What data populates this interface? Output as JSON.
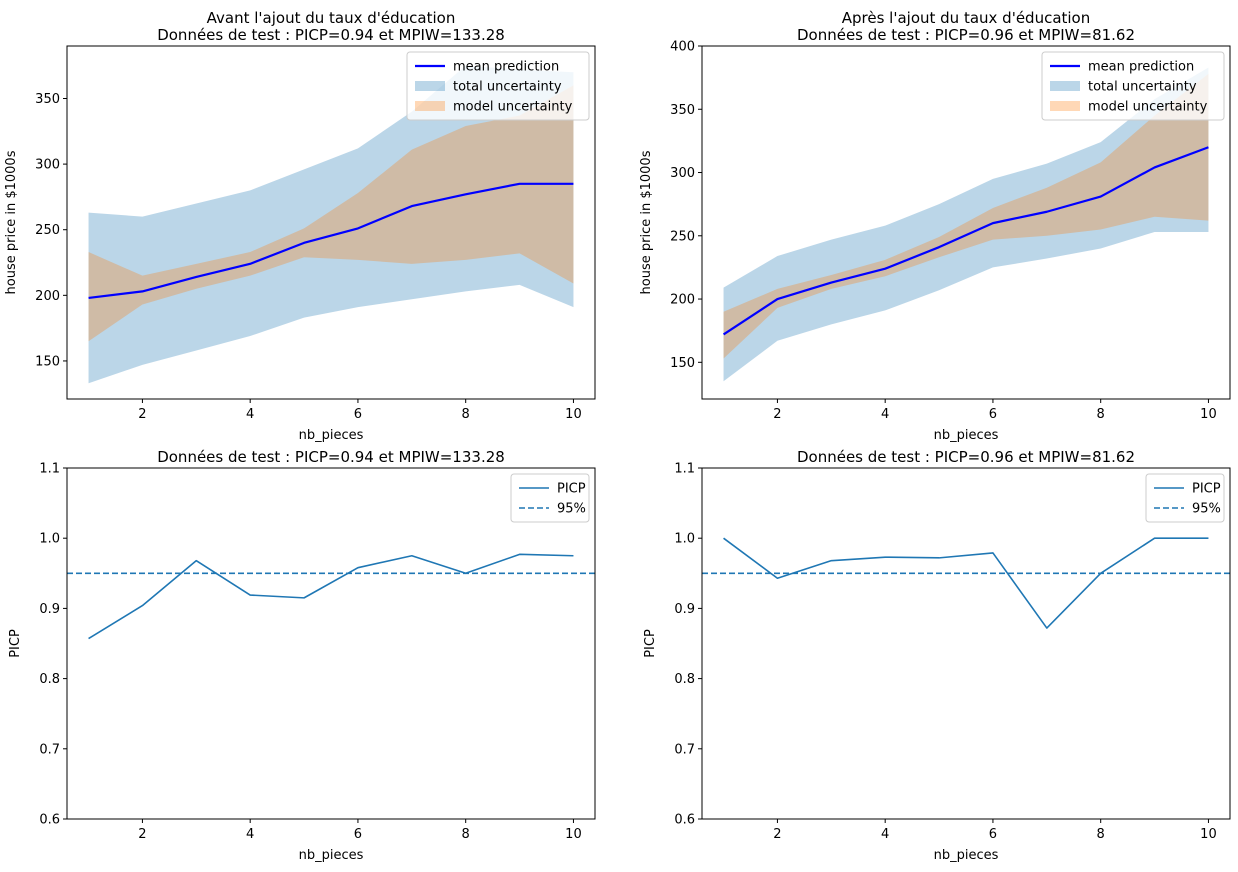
{
  "chart_data": [
    {
      "type": "line",
      "title": [
        "Avant l'ajout du taux d'éducation",
        "Données de test : PICP=0.94 et MPIW=133.28"
      ],
      "xlabel": "nb_pieces",
      "ylabel": "house price in $1000s",
      "xlim": [
        0.6,
        10.4
      ],
      "ylim": [
        121,
        390
      ],
      "xticks": [
        2,
        4,
        6,
        8,
        10
      ],
      "yticks": [
        150,
        200,
        250,
        300,
        350
      ],
      "legend_position": "upper right",
      "x": [
        1,
        2,
        3,
        4,
        5,
        6,
        7,
        8,
        9,
        10
      ],
      "series": [
        {
          "name": "mean prediction",
          "kind": "line",
          "color": "#0000ff",
          "values": [
            198,
            203,
            214,
            224,
            240,
            251,
            268,
            277,
            285,
            285
          ]
        },
        {
          "name": "total uncertainty",
          "kind": "band",
          "color": "#1f77b4",
          "opacity": 0.3,
          "lower": [
            133,
            147,
            158,
            169,
            183,
            191,
            197,
            203,
            208,
            191
          ],
          "upper": [
            263,
            260,
            270,
            280,
            296,
            312,
            340,
            375,
            372,
            370
          ]
        },
        {
          "name": "model uncertainty",
          "kind": "band",
          "color": "#ff7f0e",
          "opacity": 0.3,
          "lower": [
            165,
            193,
            205,
            215,
            229,
            227,
            224,
            227,
            232,
            209
          ],
          "upper": [
            233,
            215,
            224,
            233,
            251,
            278,
            311,
            329,
            337,
            360
          ]
        }
      ]
    },
    {
      "type": "line",
      "title": [
        "Après l'ajout du taux d'éducation",
        "Données de test : PICP=0.96 et MPIW=81.62"
      ],
      "xlabel": "nb_pieces",
      "ylabel": "house price in $1000s",
      "xlim": [
        0.6,
        10.4
      ],
      "ylim": [
        121,
        400
      ],
      "xticks": [
        2,
        4,
        6,
        8,
        10
      ],
      "yticks": [
        150,
        200,
        250,
        300,
        350,
        400
      ],
      "legend_position": "upper right",
      "x": [
        1,
        2,
        3,
        4,
        5,
        6,
        7,
        8,
        9,
        10
      ],
      "series": [
        {
          "name": "mean prediction",
          "kind": "line",
          "color": "#0000ff",
          "values": [
            172,
            200,
            213,
            224,
            241,
            260,
            269,
            281,
            304,
            320
          ]
        },
        {
          "name": "total uncertainty",
          "kind": "band",
          "color": "#1f77b4",
          "opacity": 0.3,
          "lower": [
            135,
            167,
            180,
            191,
            207,
            225,
            232,
            240,
            253,
            253
          ],
          "upper": [
            209,
            234,
            247,
            258,
            275,
            295,
            307,
            324,
            358,
            383
          ]
        },
        {
          "name": "model uncertainty",
          "kind": "band",
          "color": "#ff7f0e",
          "opacity": 0.3,
          "lower": [
            153,
            193,
            208,
            218,
            233,
            247,
            250,
            255,
            265,
            262
          ],
          "upper": [
            190,
            208,
            219,
            231,
            249,
            272,
            288,
            308,
            345,
            378
          ]
        }
      ]
    },
    {
      "type": "line",
      "title": [
        "Données de test : PICP=0.94 et MPIW=133.28"
      ],
      "xlabel": "nb_pieces",
      "ylabel": "PICP",
      "xlim": [
        0.6,
        10.4
      ],
      "ylim": [
        0.6,
        1.1
      ],
      "xticks": [
        2,
        4,
        6,
        8,
        10
      ],
      "yticks": [
        0.6,
        0.7,
        0.8,
        0.9,
        1.0,
        1.1
      ],
      "ytick_labels": [
        "0.6",
        "0.7",
        "0.8",
        "0.9",
        "1.0",
        "1.1"
      ],
      "legend_position": "upper right",
      "x": [
        1,
        2,
        3,
        4,
        5,
        6,
        7,
        8,
        9,
        10
      ],
      "series": [
        {
          "name": "PICP",
          "kind": "line",
          "color": "#1f77b4",
          "values": [
            0.857,
            0.904,
            0.968,
            0.919,
            0.915,
            0.958,
            0.975,
            0.95,
            0.977,
            0.975
          ]
        },
        {
          "name": "95%",
          "kind": "hline",
          "color": "#1f77b4",
          "dash": true,
          "value": 0.95
        }
      ]
    },
    {
      "type": "line",
      "title": [
        "Données de test : PICP=0.96 et MPIW=81.62"
      ],
      "xlabel": "nb_pieces",
      "ylabel": "PICP",
      "xlim": [
        0.6,
        10.4
      ],
      "ylim": [
        0.6,
        1.1
      ],
      "xticks": [
        2,
        4,
        6,
        8,
        10
      ],
      "yticks": [
        0.6,
        0.7,
        0.8,
        0.9,
        1.0,
        1.1
      ],
      "ytick_labels": [
        "0.6",
        "0.7",
        "0.8",
        "0.9",
        "1.0",
        "1.1"
      ],
      "legend_position": "upper right",
      "x": [
        1,
        2,
        3,
        4,
        5,
        6,
        7,
        8,
        9,
        10
      ],
      "series": [
        {
          "name": "PICP",
          "kind": "line",
          "color": "#1f77b4",
          "values": [
            1.0,
            0.943,
            0.968,
            0.973,
            0.972,
            0.979,
            0.872,
            0.95,
            1.0,
            1.0
          ]
        },
        {
          "name": "95%",
          "kind": "hline",
          "color": "#1f77b4",
          "dash": true,
          "value": 0.95
        }
      ]
    }
  ]
}
